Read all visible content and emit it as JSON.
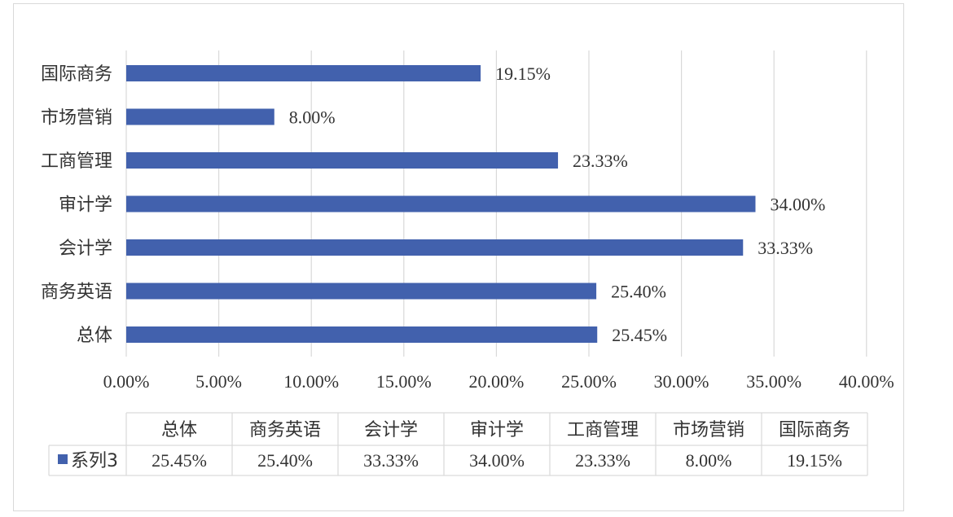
{
  "colors": {
    "bar": "#4261ad",
    "grid": "#d9d9d9",
    "text": "#333333",
    "border": "#d9d9d9"
  },
  "chart_data": {
    "type": "bar",
    "orientation": "horizontal",
    "categories": [
      "总体",
      "商务英语",
      "会计学",
      "审计学",
      "工商管理",
      "市场营销",
      "国际商务"
    ],
    "series": [
      {
        "name": "系列3",
        "values": [
          25.45,
          25.4,
          33.33,
          34.0,
          23.33,
          8.0,
          19.15
        ]
      }
    ],
    "value_labels": [
      "25.45%",
      "25.40%",
      "33.33%",
      "34.00%",
      "23.33%",
      "8.00%",
      "19.15%"
    ],
    "xlim": [
      0,
      40
    ],
    "x_ticks": [
      0,
      5,
      10,
      15,
      20,
      25,
      30,
      35,
      40
    ],
    "x_tick_labels": [
      "0.00%",
      "5.00%",
      "10.00%",
      "15.00%",
      "20.00%",
      "25.00%",
      "30.00%",
      "35.00%",
      "40.00%"
    ],
    "grid": true,
    "data_table": true,
    "legend_placement": "data-table"
  }
}
